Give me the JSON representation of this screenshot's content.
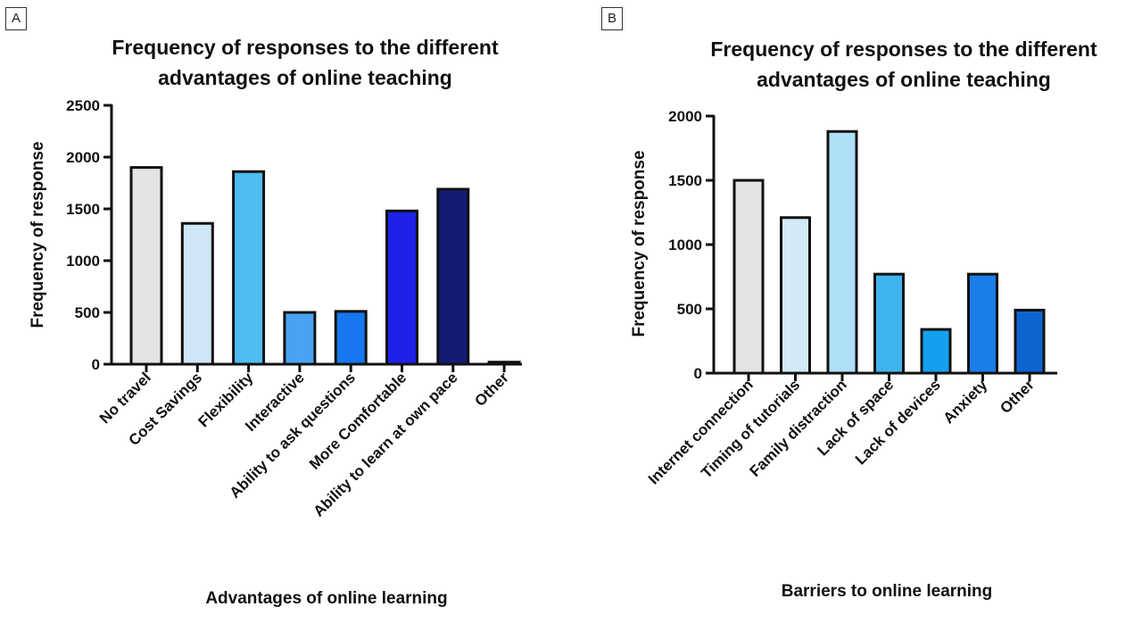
{
  "chart_data": [
    {
      "type": "bar",
      "panel_label": "A",
      "title_lines": [
        "Frequency of responses to the different",
        "advantages of online teaching"
      ],
      "xlabel": "Advantages of online learning",
      "ylabel": "Frequency of response",
      "categories": [
        "No travel",
        "Cost Savings",
        "Flexibility",
        "Interactive",
        "Ability to ask questions",
        "More Comfortable",
        "Ability to learn at own pace",
        "Other"
      ],
      "values": [
        1900,
        1360,
        1860,
        500,
        510,
        1480,
        1690,
        20
      ],
      "colors": [
        "#e4e4e4",
        "#cfe6f7",
        "#4fbdf1",
        "#4aa2f3",
        "#1677ee",
        "#1e22e9",
        "#131b73",
        "#ffffff"
      ],
      "ylim": [
        0,
        2500
      ],
      "yticks": [
        0,
        500,
        1000,
        1500,
        2000,
        2500
      ],
      "grid": false,
      "legend": "none"
    },
    {
      "type": "bar",
      "panel_label": "B",
      "title_lines": [
        "Frequency of responses to the different",
        "advantages of online teaching"
      ],
      "xlabel": "Barriers to online learning",
      "ylabel": "Frequency of response",
      "categories": [
        "Internet connection",
        "Timing of tutorials",
        "Family distraction",
        "Lack of space",
        "Lack of devices",
        "Anxiety",
        "Other"
      ],
      "values": [
        1500,
        1210,
        1880,
        770,
        340,
        770,
        490
      ],
      "colors": [
        "#e4e4e4",
        "#d2eaf8",
        "#aee0f8",
        "#3fb4ec",
        "#14a0ee",
        "#1a7ee9",
        "#0d65d1"
      ],
      "ylim": [
        0,
        2000
      ],
      "yticks": [
        0,
        500,
        1000,
        1500,
        2000
      ],
      "grid": false,
      "legend": "none"
    }
  ]
}
